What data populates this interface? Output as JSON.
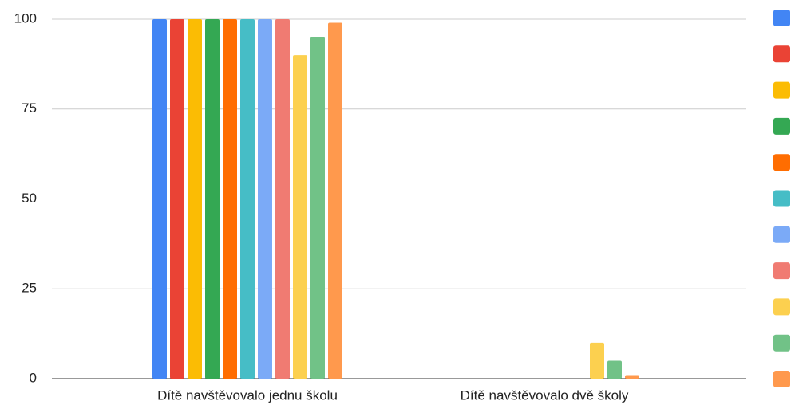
{
  "chart_data": {
    "type": "bar",
    "categories": [
      "Dítě navštěvovalo jednu školu",
      "Dítě navštěvovalo dvě školy"
    ],
    "series": [
      {
        "color": "#4285f4",
        "values": [
          100,
          0
        ]
      },
      {
        "color": "#ea4335",
        "values": [
          100,
          0
        ]
      },
      {
        "color": "#fbbc04",
        "values": [
          100,
          0
        ]
      },
      {
        "color": "#34a853",
        "values": [
          100,
          0
        ]
      },
      {
        "color": "#ff6d01",
        "values": [
          100,
          0
        ]
      },
      {
        "color": "#46bdc6",
        "values": [
          100,
          0
        ]
      },
      {
        "color": "#7baaf7",
        "values": [
          100,
          0
        ]
      },
      {
        "color": "#f07b72",
        "values": [
          100,
          0
        ]
      },
      {
        "color": "#fcd04f",
        "values": [
          90,
          10
        ]
      },
      {
        "color": "#71c287",
        "values": [
          95,
          5
        ]
      },
      {
        "color": "#ff994d",
        "values": [
          99,
          1
        ]
      }
    ],
    "ylim": [
      0,
      100
    ],
    "yticks": [
      0,
      25,
      50,
      75,
      100
    ],
    "grid": true,
    "legend": "right"
  }
}
